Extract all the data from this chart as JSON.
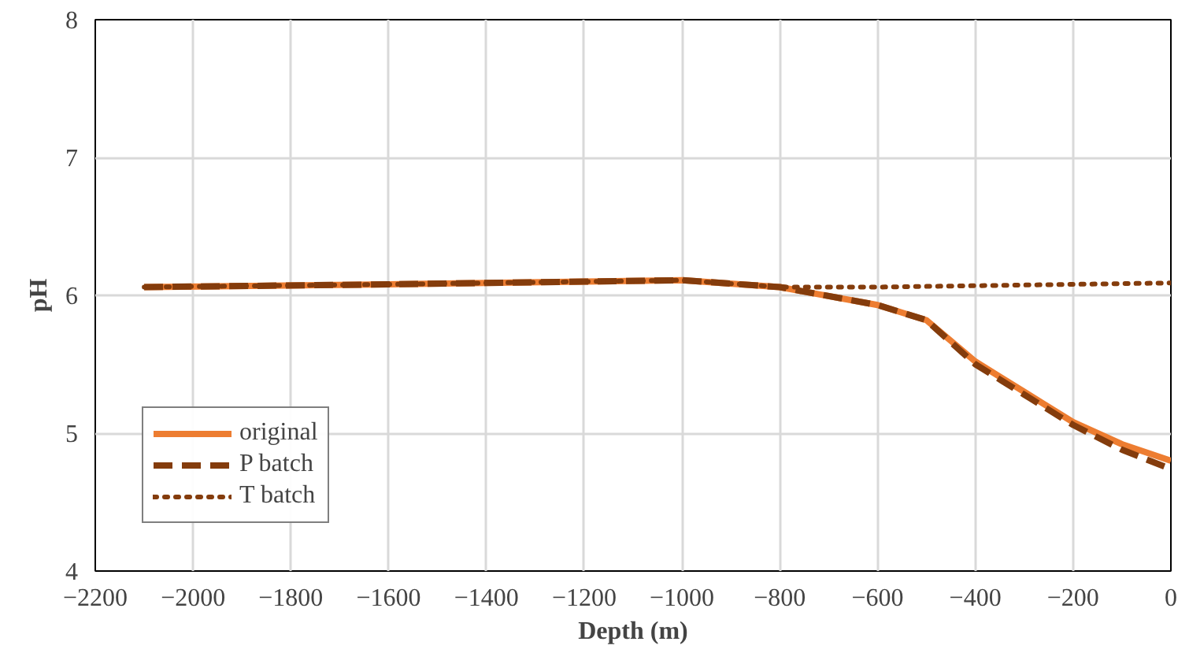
{
  "chart_data": {
    "type": "line",
    "xlabel": "Depth (m)",
    "ylabel": "pH",
    "xlim": [
      -2200,
      0
    ],
    "xticks": [
      -2200,
      -2000,
      -1800,
      -1600,
      -1400,
      -1200,
      -1000,
      -800,
      -600,
      -400,
      -200,
      0
    ],
    "ylim": [
      4,
      8
    ],
    "yticks": [
      4,
      5,
      6,
      7,
      8
    ],
    "grid": true,
    "legend": "bottom left",
    "series": [
      {
        "name": "original",
        "color": "#ed7d31",
        "line_style": "solid",
        "x": [
          -2100,
          -1600,
          -1200,
          -1000,
          -800,
          -600,
          -500,
          -400,
          -300,
          -200,
          -100,
          0
        ],
        "values": [
          6.06,
          6.08,
          6.1,
          6.11,
          6.06,
          5.93,
          5.82,
          5.52,
          5.3,
          5.08,
          4.92,
          4.8
        ]
      },
      {
        "name": "P batch",
        "color": "#843c0c",
        "line_style": "dashed",
        "x": [
          -2100,
          -1600,
          -1200,
          -1000,
          -800,
          -600,
          -500,
          -400,
          -300,
          -200,
          -100,
          0
        ],
        "values": [
          6.06,
          6.08,
          6.1,
          6.11,
          6.06,
          5.93,
          5.82,
          5.5,
          5.28,
          5.06,
          4.88,
          4.74
        ]
      },
      {
        "name": "T batch",
        "color": "#843c0c",
        "line_style": "dotted",
        "x": [
          -2100,
          -1600,
          -1200,
          -1000,
          -800,
          -600,
          -400,
          -200,
          0
        ],
        "values": [
          6.06,
          6.08,
          6.1,
          6.11,
          6.06,
          6.06,
          6.07,
          6.08,
          6.09
        ]
      }
    ]
  }
}
